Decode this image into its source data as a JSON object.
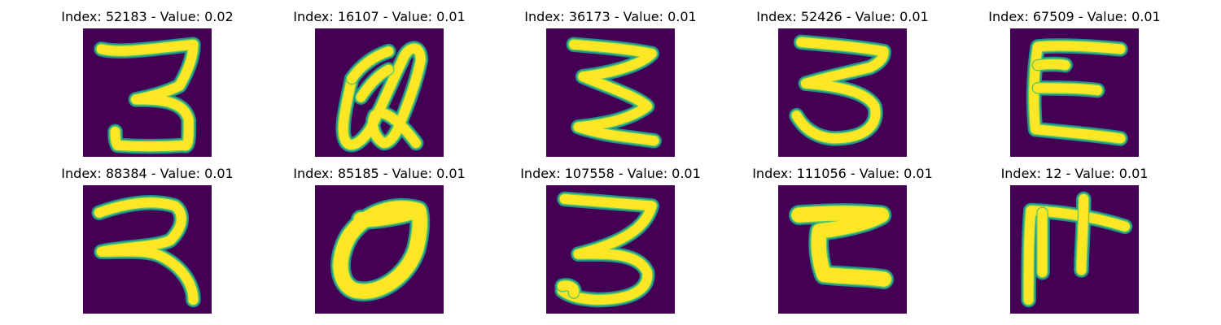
{
  "colors": {
    "background": "#440154",
    "stroke_edge": "#21918c",
    "stroke_mid": "#5ec962",
    "stroke_core": "#fde725"
  },
  "panels": [
    {
      "title": "Index: 52183 - Value: 0.02",
      "glyph": "3"
    },
    {
      "title": "Index: 16107 - Value: 0.01",
      "glyph": "Q"
    },
    {
      "title": "Index: 36173 - Value: 0.01",
      "glyph": "3-zigzag"
    },
    {
      "title": "Index: 52426 - Value: 0.01",
      "glyph": "3-wide"
    },
    {
      "title": "Index: 67509 - Value: 0.01",
      "glyph": "E"
    },
    {
      "title": "Index: 88384 - Value: 0.01",
      "glyph": "3-loose"
    },
    {
      "title": "Index: 85185 - Value: 0.01",
      "glyph": "0"
    },
    {
      "title": "Index: 107558 - Value: 0.01",
      "glyph": "3-tall"
    },
    {
      "title": "Index: 111056 - Value: 0.01",
      "glyph": "Z"
    },
    {
      "title": "Index: 12 - Value: 0.01",
      "glyph": "ladder"
    }
  ]
}
